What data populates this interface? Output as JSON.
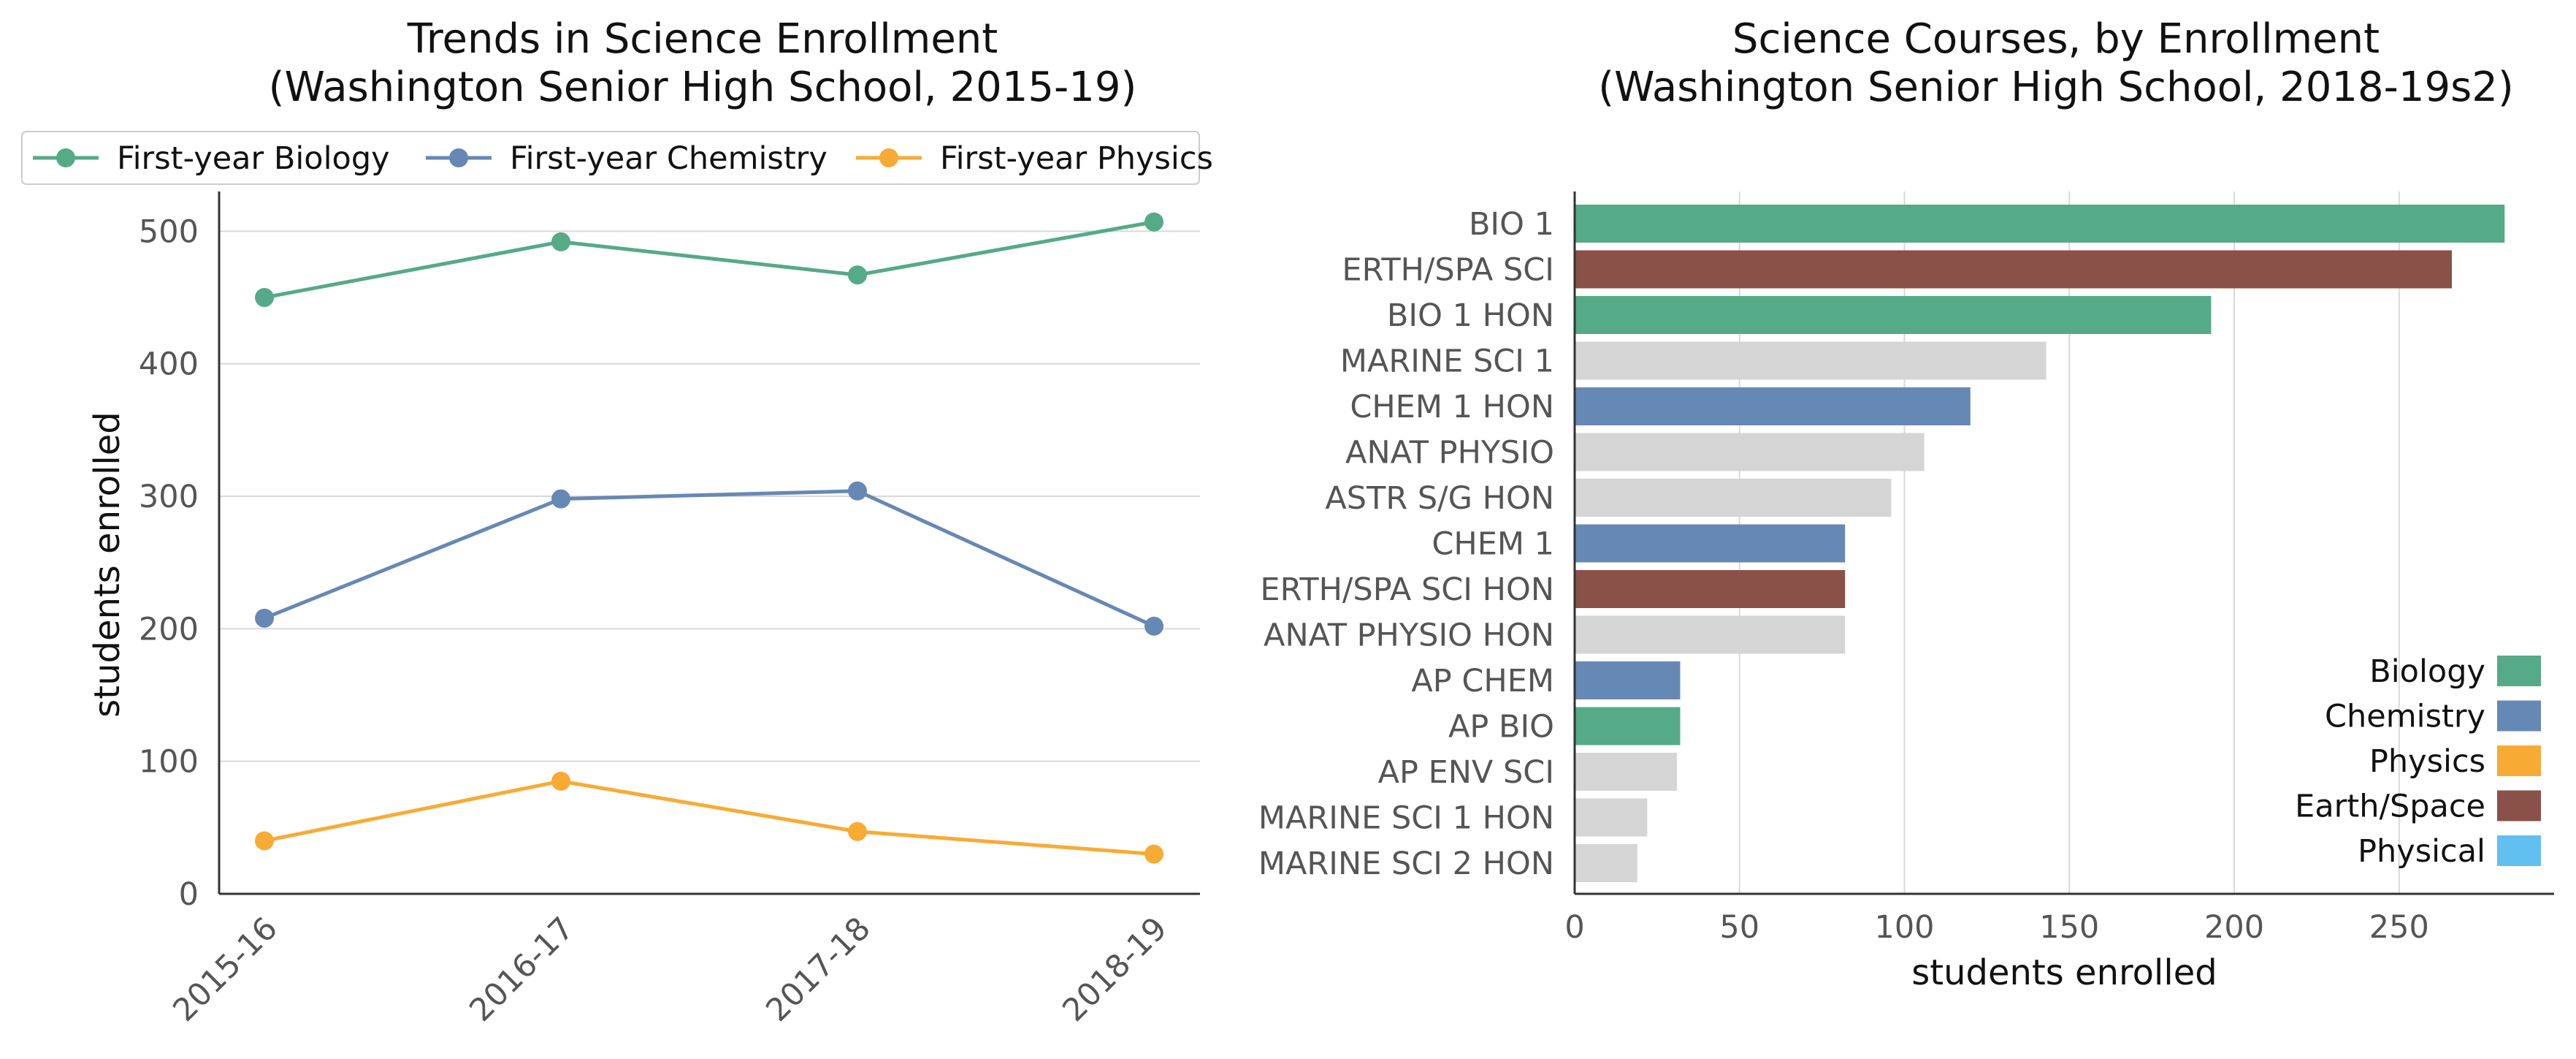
{
  "colors": {
    "biology": "#55aa88",
    "chemistry": "#6688b4",
    "physics": "#f8ab34",
    "earth_space": "#8a5148",
    "physical": "#62c0f0",
    "other": "#d5d5d5",
    "grid": "#d9d9d9",
    "axis": "#333333"
  },
  "chart_data": [
    {
      "type": "line",
      "title_line1": "Trends in Science Enrollment",
      "title_line2": "(Washington Senior High School, 2015-19)",
      "xlabel": "",
      "ylabel": "students enrolled",
      "x": [
        "2015-16",
        "2016-17",
        "2017-18",
        "2018-19"
      ],
      "ylim": [
        0,
        530
      ],
      "yticks": [
        0,
        100,
        200,
        300,
        400,
        500
      ],
      "grid": "horizontal",
      "legend_position": "top",
      "series": [
        {
          "name": "First-year Biology",
          "color_key": "biology",
          "values": [
            450,
            492,
            467,
            507
          ]
        },
        {
          "name": "First-year Chemistry",
          "color_key": "chemistry",
          "values": [
            208,
            298,
            304,
            202
          ]
        },
        {
          "name": "First-year Physics",
          "color_key": "physics",
          "values": [
            40,
            85,
            47,
            30
          ]
        }
      ]
    },
    {
      "type": "bar",
      "orientation": "horizontal",
      "title_line1": "Science Courses, by Enrollment",
      "title_line2": "(Washington Senior High School, 2018-19s2)",
      "xlabel": "students enrolled",
      "ylabel": "",
      "xlim": [
        0,
        297
      ],
      "xticks": [
        0,
        50,
        100,
        150,
        200,
        250
      ],
      "grid": "vertical",
      "legend_position": "lower-right",
      "categories": [
        "BIO 1",
        "ERTH/SPA SCI",
        "BIO 1 HON",
        "MARINE SCI 1",
        "CHEM 1 HON",
        "ANAT PHYSIO",
        "ASTR S/G HON",
        "CHEM 1",
        "ERTH/SPA SCI HON",
        "ANAT PHYSIO HON",
        "AP CHEM",
        "AP BIO",
        "AP ENV SCI",
        "MARINE SCI 1 HON",
        "MARINE SCI 2 HON"
      ],
      "values": [
        282,
        266,
        193,
        143,
        120,
        106,
        96,
        82,
        82,
        82,
        32,
        32,
        31,
        22,
        19
      ],
      "color_keys": [
        "biology",
        "earth_space",
        "biology",
        "other",
        "chemistry",
        "other",
        "other",
        "chemistry",
        "earth_space",
        "other",
        "chemistry",
        "biology",
        "other",
        "other",
        "other"
      ],
      "legend": [
        {
          "name": "Biology",
          "color_key": "biology"
        },
        {
          "name": "Chemistry",
          "color_key": "chemistry"
        },
        {
          "name": "Physics",
          "color_key": "physics"
        },
        {
          "name": "Earth/Space",
          "color_key": "earth_space"
        },
        {
          "name": "Physical",
          "color_key": "physical"
        }
      ]
    }
  ]
}
